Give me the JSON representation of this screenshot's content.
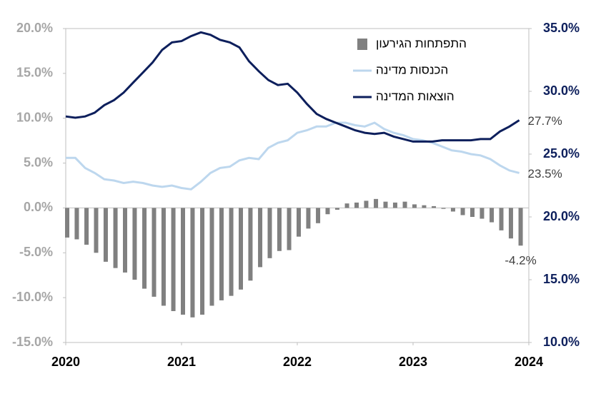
{
  "chart_data": {
    "type": "bar_line",
    "x": [
      2020,
      2020.083,
      2020.167,
      2020.25,
      2020.333,
      2020.417,
      2020.5,
      2020.583,
      2020.667,
      2020.75,
      2020.833,
      2020.917,
      2021,
      2021.083,
      2021.167,
      2021.25,
      2021.333,
      2021.417,
      2021.5,
      2021.583,
      2021.667,
      2021.75,
      2021.833,
      2021.917,
      2022,
      2022.083,
      2022.167,
      2022.25,
      2022.333,
      2022.417,
      2022.5,
      2022.583,
      2022.667,
      2022.75,
      2022.833,
      2022.917,
      2023,
      2023.083,
      2023.167,
      2023.25,
      2023.333,
      2023.417,
      2023.5,
      2023.583,
      2023.667,
      2023.75,
      2023.833,
      2023.917
    ],
    "xlim": [
      2020,
      2024
    ],
    "xticks": [
      2020,
      2021,
      2022,
      2023,
      2024
    ],
    "ylim": [
      -15,
      20
    ],
    "yticks": [
      {
        "value": -15,
        "label": "-15.0%"
      },
      {
        "value": -10,
        "label": "-10.0%"
      },
      {
        "value": -5,
        "label": "-5.0%"
      },
      {
        "value": 0,
        "label": "0.0%"
      },
      {
        "value": 5,
        "label": "5.0%"
      },
      {
        "value": 10,
        "label": "10.0%"
      },
      {
        "value": 15,
        "label": "15.0%"
      },
      {
        "value": 20,
        "label": "20.0%"
      }
    ],
    "y2lim": [
      10,
      35
    ],
    "y2ticks": [
      {
        "value": 10,
        "label": "10.0%"
      },
      {
        "value": 15,
        "label": "15.0%"
      },
      {
        "value": 20,
        "label": "20.0%"
      },
      {
        "value": 25,
        "label": "25.0%"
      },
      {
        "value": 30,
        "label": "30.0%"
      },
      {
        "value": 35,
        "label": "35.0%"
      }
    ],
    "legend": "upper right",
    "series": [
      {
        "name": "התפתחות הגירעון",
        "kind": "bar",
        "color": "#808080",
        "values": [
          -3.3,
          -3.5,
          -4.1,
          -5.0,
          -6.0,
          -6.7,
          -7.2,
          -8.0,
          -9.0,
          -9.9,
          -10.9,
          -11.5,
          -11.9,
          -12.2,
          -11.9,
          -10.9,
          -10.3,
          -9.8,
          -9.1,
          -8.1,
          -6.6,
          -5.6,
          -4.8,
          -4.7,
          -3.2,
          -2.3,
          -1.7,
          -0.7,
          -0.2,
          0.5,
          0.6,
          0.8,
          1.0,
          0.7,
          0.6,
          0.7,
          0.4,
          0.3,
          0.2,
          -0.1,
          -0.4,
          -0.8,
          -1.0,
          -1.2,
          -1.6,
          -2.5,
          -3.4,
          -4.2
        ],
        "value_labels": [
          null,
          null,
          null,
          null,
          null,
          null,
          null,
          null,
          null,
          null,
          null,
          null,
          null,
          null,
          null,
          null,
          null,
          null,
          null,
          null,
          null,
          null,
          null,
          null,
          null,
          null,
          null,
          null,
          null,
          null,
          null,
          null,
          null,
          null,
          null,
          null,
          null,
          null,
          null,
          null,
          null,
          null,
          null,
          null,
          null,
          null,
          null,
          "-4.2%"
        ]
      },
      {
        "name": "הכנסות מדינה",
        "kind": "line",
        "axis": "y2",
        "color": "#bdd7ee",
        "values": [
          24.7,
          24.7,
          23.9,
          23.5,
          23.0,
          22.9,
          22.7,
          22.8,
          22.7,
          22.5,
          22.4,
          22.5,
          22.3,
          22.2,
          22.8,
          23.5,
          23.9,
          24.0,
          24.5,
          24.7,
          24.6,
          25.5,
          25.9,
          26.1,
          26.7,
          26.9,
          27.2,
          27.2,
          27.5,
          27.5,
          27.3,
          27.2,
          27.5,
          27.0,
          26.7,
          26.5,
          26.2,
          26.1,
          25.9,
          25.6,
          25.3,
          25.2,
          25.0,
          24.9,
          24.6,
          24.1,
          23.7,
          23.5
        ],
        "value_labels": [
          null,
          null,
          null,
          null,
          null,
          null,
          null,
          null,
          null,
          null,
          null,
          null,
          null,
          null,
          null,
          null,
          null,
          null,
          null,
          null,
          null,
          null,
          null,
          null,
          null,
          null,
          null,
          null,
          null,
          null,
          null,
          null,
          null,
          null,
          null,
          null,
          null,
          null,
          null,
          null,
          null,
          null,
          null,
          null,
          null,
          null,
          null,
          "23.5%"
        ]
      },
      {
        "name": "הוצאות המדינה",
        "kind": "line",
        "axis": "y2",
        "color": "#0d1f5c",
        "values": [
          28.0,
          27.9,
          28.0,
          28.3,
          28.9,
          29.3,
          29.9,
          30.7,
          31.5,
          32.3,
          33.3,
          33.9,
          34.0,
          34.4,
          34.7,
          34.5,
          34.1,
          33.9,
          33.5,
          32.4,
          31.6,
          30.9,
          30.5,
          30.6,
          29.9,
          29.0,
          28.2,
          27.8,
          27.5,
          27.2,
          26.9,
          26.7,
          26.6,
          26.7,
          26.4,
          26.2,
          26.0,
          26.0,
          26.0,
          26.1,
          26.1,
          26.1,
          26.1,
          26.2,
          26.2,
          26.8,
          27.2,
          27.7
        ],
        "value_labels": [
          null,
          null,
          null,
          null,
          null,
          null,
          null,
          null,
          null,
          null,
          null,
          null,
          null,
          null,
          null,
          null,
          null,
          null,
          null,
          null,
          null,
          null,
          null,
          null,
          null,
          null,
          null,
          null,
          null,
          null,
          null,
          null,
          null,
          null,
          null,
          null,
          null,
          null,
          null,
          null,
          null,
          null,
          null,
          null,
          null,
          null,
          null,
          "27.7%"
        ]
      }
    ]
  }
}
